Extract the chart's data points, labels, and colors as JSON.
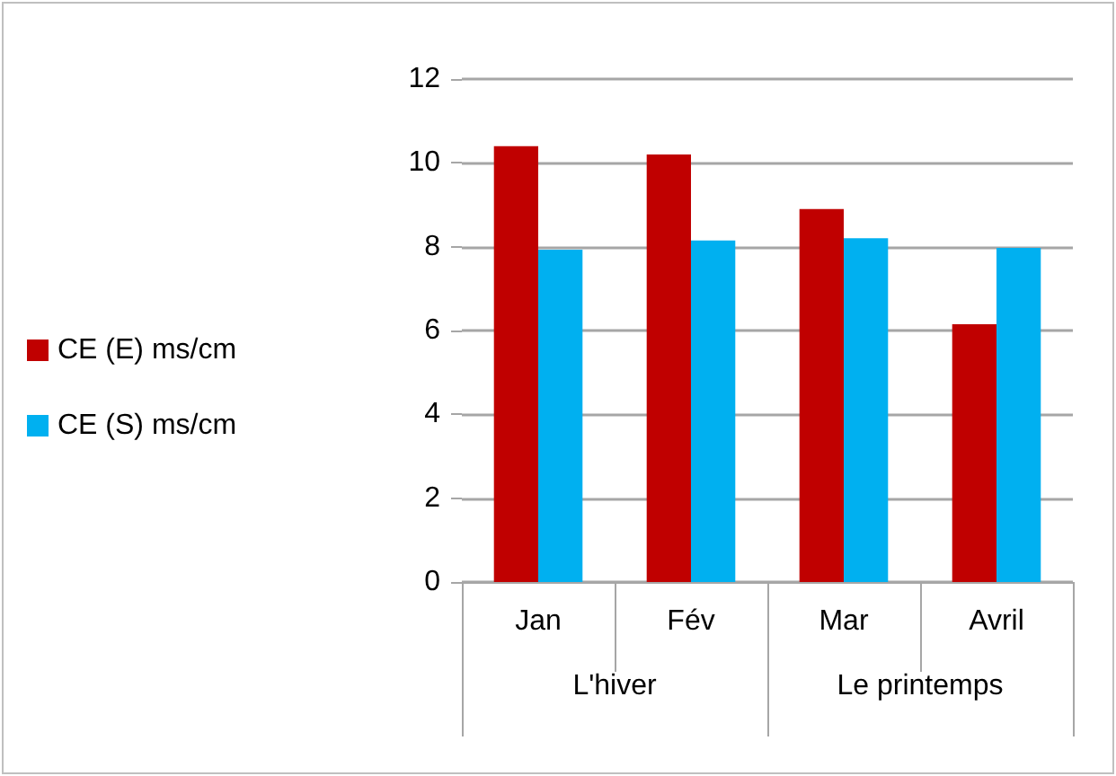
{
  "chart_data": {
    "type": "bar",
    "categories": [
      "Jan",
      "Fév",
      "Mar",
      "Avril"
    ],
    "series": [
      {
        "name": "CE (E) ms/cm",
        "color": "#c00000",
        "values": [
          10.4,
          10.2,
          8.9,
          6.15
        ]
      },
      {
        "name": "CE (S) ms/cm",
        "color": "#00b0f0",
        "values": [
          7.93,
          8.15,
          8.2,
          7.97
        ]
      }
    ],
    "annotations": [
      "L'hiver",
      "Le printemps"
    ],
    "ylim": [
      0,
      12
    ],
    "yticks": [
      0,
      2,
      4,
      6,
      8,
      10,
      12
    ],
    "grid": "y",
    "legend": "left"
  }
}
